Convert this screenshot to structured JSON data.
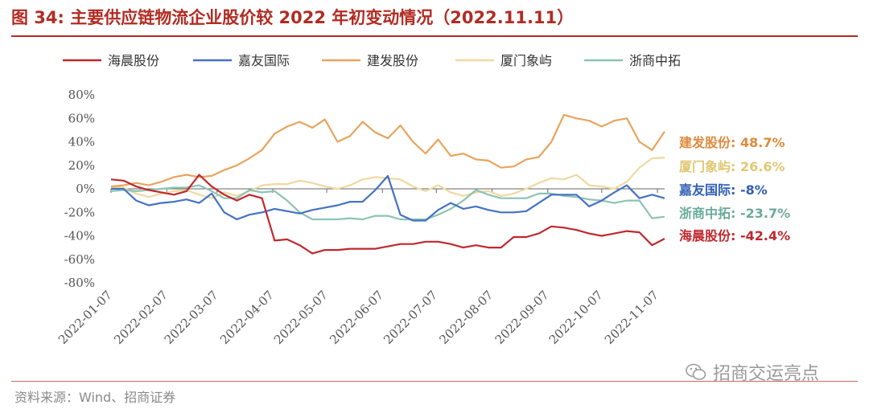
{
  "title": "图 34:  主要供应链物流企业股价较 2022 年初变动情况（2022.11.11）",
  "source": "资料来源：Wind、招商证券",
  "watermark": {
    "text": "招商交运亮点",
    "icon": "wechat-icon"
  },
  "colors": {
    "title": "#b22b22",
    "haichen": "#c0282d",
    "jiayou": "#4472c4",
    "jianfa": "#e8a45c",
    "xiamen": "#eed9a0",
    "zheshang": "#8dc3b4"
  },
  "chart_data": {
    "type": "line",
    "ylim": [
      -80,
      80
    ],
    "yticks": [
      "80%",
      "60%",
      "40%",
      "20%",
      "0%",
      "-20%",
      "-40%",
      "-60%",
      "-80%"
    ],
    "ytick_values": [
      80,
      60,
      40,
      20,
      0,
      -20,
      -40,
      -60,
      -80
    ],
    "xticks": [
      "2022-01-07",
      "2022-02-07",
      "2022-03-07",
      "2022-04-07",
      "2022-05-07",
      "2022-06-07",
      "2022-07-07",
      "2022-08-07",
      "2022-09-07",
      "2022-10-07",
      "2022-11-07"
    ],
    "legend_position": "top",
    "grid": false,
    "x": [
      "2022-01-07",
      "2022-01-14",
      "2022-01-21",
      "2022-01-28",
      "2022-02-04",
      "2022-02-11",
      "2022-02-18",
      "2022-02-25",
      "2022-03-04",
      "2022-03-11",
      "2022-03-18",
      "2022-03-25",
      "2022-04-01",
      "2022-04-08",
      "2022-04-15",
      "2022-04-22",
      "2022-04-29",
      "2022-05-06",
      "2022-05-13",
      "2022-05-20",
      "2022-05-27",
      "2022-06-03",
      "2022-06-10",
      "2022-06-17",
      "2022-06-24",
      "2022-07-01",
      "2022-07-08",
      "2022-07-15",
      "2022-07-22",
      "2022-07-29",
      "2022-08-05",
      "2022-08-12",
      "2022-08-19",
      "2022-08-26",
      "2022-09-02",
      "2022-09-09",
      "2022-09-16",
      "2022-09-23",
      "2022-09-30",
      "2022-10-07",
      "2022-10-14",
      "2022-10-21",
      "2022-10-28",
      "2022-11-04",
      "2022-11-11"
    ],
    "series": [
      {
        "name": "海晨股份",
        "color": "#c0282d",
        "end_label": "海晨股份:  -42.4%",
        "values": [
          8,
          7,
          2,
          -1,
          -3,
          -5,
          -2,
          12,
          2,
          -5,
          -10,
          -5,
          -8,
          -44,
          -43,
          -48,
          -55,
          -52,
          -52,
          -51,
          -51,
          -51,
          -49,
          -47,
          -47,
          -45,
          -45,
          -47,
          -50,
          -48,
          -50,
          -50,
          -41,
          -41,
          -38,
          -32,
          -33,
          -35,
          -38,
          -40,
          -38,
          -36,
          -37,
          -48,
          -42.4
        ]
      },
      {
        "name": "嘉友国际",
        "color": "#4472c4",
        "end_label": "嘉友国际:  -8%",
        "values": [
          0,
          0,
          -10,
          -14,
          -12,
          -11,
          -9,
          -12,
          -4,
          -20,
          -26,
          -22,
          -20,
          -17,
          -19,
          -21,
          -18,
          -16,
          -14,
          -11,
          -11,
          -1,
          11,
          -22,
          -27,
          -27,
          -18,
          -12,
          -17,
          -15,
          -18,
          -20,
          -20,
          -19,
          -12,
          -5,
          -5,
          -5,
          -15,
          -10,
          -3,
          3,
          -8,
          -5,
          -8
        ]
      },
      {
        "name": "建发股份",
        "color": "#e8a45c",
        "end_label": "建发股份:  48.7%",
        "values": [
          2,
          3,
          5,
          3,
          6,
          10,
          12,
          10,
          11,
          16,
          20,
          26,
          33,
          47,
          53,
          57,
          52,
          59,
          40,
          45,
          57,
          48,
          43,
          54,
          40,
          30,
          42,
          28,
          30,
          25,
          24,
          18,
          19,
          25,
          27,
          40,
          63,
          60,
          58,
          53,
          58,
          60,
          40,
          33,
          48.7
        ]
      },
      {
        "name": "厦门象屿",
        "color": "#eed9a0",
        "end_label": "厦门象屿:  26.6%",
        "values": [
          1,
          1,
          -4,
          -7,
          -4,
          -2,
          -1,
          -5,
          -8,
          -3,
          -6,
          -2,
          3,
          4,
          4,
          7,
          5,
          2,
          0,
          3,
          8,
          10,
          9,
          8,
          2,
          -2,
          3,
          -3,
          -6,
          -3,
          -2,
          -6,
          -4,
          0,
          5,
          9,
          8,
          12,
          3,
          2,
          0,
          6,
          18,
          26,
          26.6
        ]
      },
      {
        "name": "浙商中拓",
        "color": "#8dc3b4",
        "end_label": "浙商中拓:  -23.7%",
        "values": [
          -2,
          -1,
          -2,
          -1,
          0,
          1,
          1,
          3,
          -2,
          -8,
          -8,
          -1,
          -3,
          -2,
          -10,
          -20,
          -26,
          -26,
          -26,
          -25,
          -26,
          -23,
          -23,
          -26,
          -26,
          -26,
          -22,
          -17,
          -10,
          -1,
          -5,
          -8,
          -8,
          -8,
          -4,
          -4,
          -6,
          -7,
          -9,
          -10,
          -12,
          -10,
          -10,
          -25,
          -23.7
        ]
      }
    ]
  }
}
